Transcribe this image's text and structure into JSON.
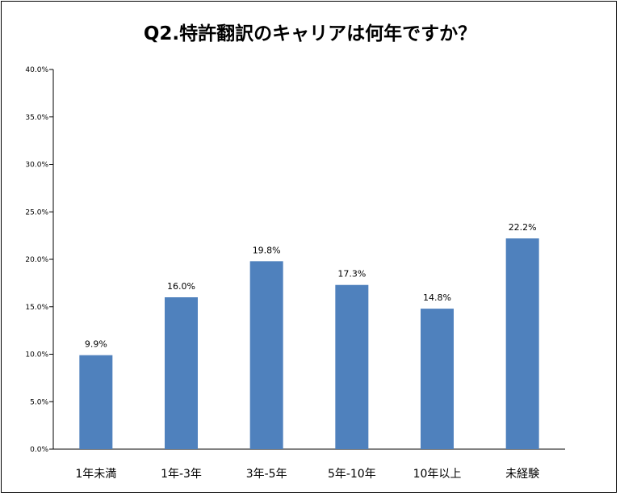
{
  "chart_data": {
    "type": "bar",
    "title": "Q2.特許翻訳のキャリアは何年ですか？",
    "xlabel": "",
    "ylabel": "",
    "categories": [
      "1年未満",
      "1年-3年",
      "3年-5年",
      "5年-10年",
      "10年以上",
      "未経験"
    ],
    "values": [
      9.9,
      16.0,
      19.8,
      17.3,
      14.8,
      22.2
    ],
    "data_labels": [
      "9.9%",
      "16.0%",
      "19.8%",
      "17.3%",
      "14.8%",
      "22.2%"
    ],
    "ylim": [
      0,
      40
    ],
    "y_ticks": [
      0,
      5,
      10,
      15,
      20,
      25,
      30,
      35,
      40
    ],
    "y_tick_labels": [
      "0.0%",
      "5.0%",
      "10.0%",
      "15.0%",
      "20.0%",
      "25.0%",
      "30.0%",
      "35.0%",
      "40.0%"
    ],
    "bar_color": "#4F81BD",
    "grid": false,
    "legend": "none"
  }
}
